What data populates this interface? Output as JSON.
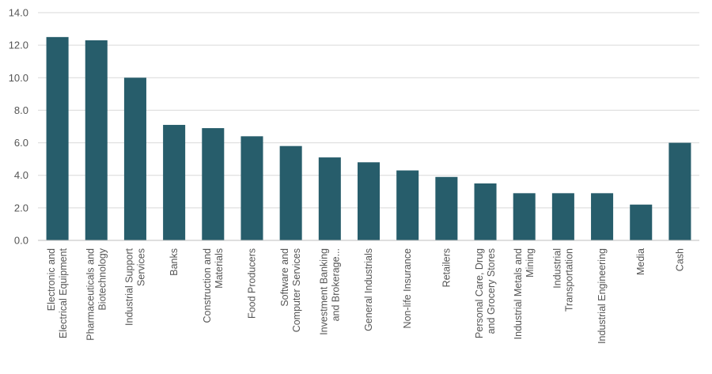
{
  "chart_data": {
    "type": "bar",
    "title": "",
    "xlabel": "",
    "ylabel": "",
    "ylim": [
      0,
      14
    ],
    "yticks": [
      "0.0",
      "2.0",
      "4.0",
      "6.0",
      "8.0",
      "10.0",
      "12.0",
      "14.0"
    ],
    "grid": true,
    "legend": "none",
    "bar_color": "#275d6b",
    "categories": [
      [
        "Electronic and",
        "Electrical Equipment"
      ],
      [
        "Pharmaceuticals and",
        "Biotechnology"
      ],
      [
        "Industrial Support",
        "Services"
      ],
      [
        "Banks"
      ],
      [
        "Construction and",
        "Materials"
      ],
      [
        "Food Producers"
      ],
      [
        "Software and",
        "Computer Services"
      ],
      [
        "Investment Banking",
        "and Brokerage..."
      ],
      [
        "General Industrials"
      ],
      [
        "Non-life Insurance"
      ],
      [
        "Retailers"
      ],
      [
        "Personal Care, Drug",
        "and Grocery Stores"
      ],
      [
        "Industrial Metals and",
        "Mining"
      ],
      [
        "Industrial",
        "Transportation"
      ],
      [
        "Industrial Engineering"
      ],
      [
        "Media"
      ],
      [
        "Cash"
      ]
    ],
    "values": [
      12.5,
      12.3,
      10.0,
      7.1,
      6.9,
      6.4,
      5.8,
      5.1,
      4.8,
      4.3,
      3.9,
      3.5,
      2.9,
      2.9,
      2.9,
      2.2,
      6.0
    ]
  }
}
